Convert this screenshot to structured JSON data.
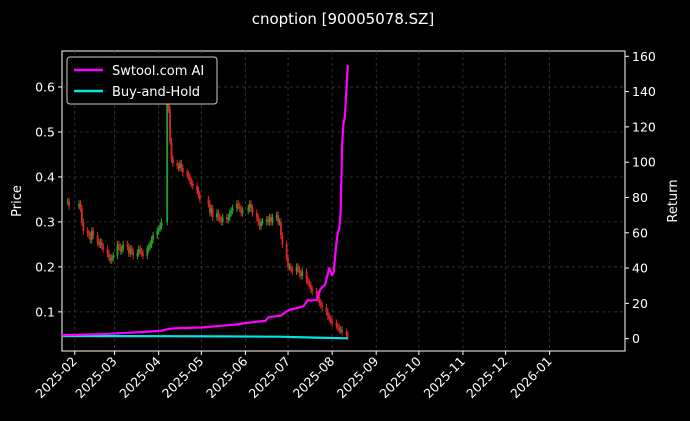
{
  "chart_data": {
    "type": "line",
    "title": "cnoption [90005078.SZ]",
    "ylabel_left": "Price",
    "ylabel_right": "Return",
    "ylim_left": [
      0.013,
      0.68
    ],
    "ylim_right": [
      -7,
      163
    ],
    "yticks_left": [
      "0.1",
      "0.2",
      "0.3",
      "0.4",
      "0.5",
      "0.6"
    ],
    "yticks_right": [
      "0",
      "20",
      "40",
      "60",
      "80",
      "100",
      "120",
      "140",
      "160"
    ],
    "xlim": [
      "2025-01-23",
      "2026-02-23"
    ],
    "xticks": [
      "2025-02",
      "2025-03",
      "2025-04",
      "2025-05",
      "2025-06",
      "2025-07",
      "2025-08",
      "2025-09",
      "2025-10",
      "2025-11",
      "2025-12",
      "2026-01"
    ],
    "grid": true,
    "legend_position": "top-left",
    "colors": {
      "background": "#000000",
      "grid": "#444444",
      "up": "#2ca02c",
      "down": "#d62728",
      "ai": "#ff00ff",
      "bh": "#00e5e5"
    },
    "candlestick_close": [
      [
        "2025-01-27",
        0.345
      ],
      [
        "2025-01-28",
        0.335
      ],
      [
        "2025-02-04",
        0.34
      ],
      [
        "2025-02-05",
        0.33
      ],
      [
        "2025-02-06",
        0.3
      ],
      [
        "2025-02-07",
        0.28
      ],
      [
        "2025-02-10",
        0.275
      ],
      [
        "2025-02-11",
        0.27
      ],
      [
        "2025-02-12",
        0.26
      ],
      [
        "2025-02-13",
        0.28
      ],
      [
        "2025-02-14",
        0.27
      ],
      [
        "2025-02-17",
        0.255
      ],
      [
        "2025-02-18",
        0.25
      ],
      [
        "2025-02-19",
        0.255
      ],
      [
        "2025-02-20",
        0.245
      ],
      [
        "2025-02-21",
        0.24
      ],
      [
        "2025-02-24",
        0.23
      ],
      [
        "2025-02-25",
        0.22
      ],
      [
        "2025-02-26",
        0.215
      ],
      [
        "2025-02-27",
        0.22
      ],
      [
        "2025-02-28",
        0.225
      ],
      [
        "2025-03-03",
        0.25
      ],
      [
        "2025-03-04",
        0.245
      ],
      [
        "2025-03-05",
        0.235
      ],
      [
        "2025-03-06",
        0.24
      ],
      [
        "2025-03-07",
        0.25
      ],
      [
        "2025-03-10",
        0.245
      ],
      [
        "2025-03-11",
        0.23
      ],
      [
        "2025-03-12",
        0.24
      ],
      [
        "2025-03-13",
        0.235
      ],
      [
        "2025-03-14",
        0.225
      ],
      [
        "2025-03-17",
        0.23
      ],
      [
        "2025-03-18",
        0.24
      ],
      [
        "2025-03-19",
        0.235
      ],
      [
        "2025-03-20",
        0.23
      ],
      [
        "2025-03-21",
        0.225
      ],
      [
        "2025-03-24",
        0.24
      ],
      [
        "2025-03-25",
        0.245
      ],
      [
        "2025-03-26",
        0.25
      ],
      [
        "2025-03-27",
        0.26
      ],
      [
        "2025-03-28",
        0.27
      ],
      [
        "2025-03-31",
        0.28
      ],
      [
        "2025-04-01",
        0.285
      ],
      [
        "2025-04-02",
        0.29
      ],
      [
        "2025-04-03",
        0.3
      ],
      [
        "2025-04-07",
        0.6
      ],
      [
        "2025-04-08",
        0.55
      ],
      [
        "2025-04-09",
        0.48
      ],
      [
        "2025-04-10",
        0.44
      ],
      [
        "2025-04-11",
        0.43
      ],
      [
        "2025-04-14",
        0.425
      ],
      [
        "2025-04-15",
        0.42
      ],
      [
        "2025-04-16",
        0.43
      ],
      [
        "2025-04-17",
        0.42
      ],
      [
        "2025-04-18",
        0.41
      ],
      [
        "2025-04-21",
        0.405
      ],
      [
        "2025-04-22",
        0.4
      ],
      [
        "2025-04-23",
        0.39
      ],
      [
        "2025-04-24",
        0.385
      ],
      [
        "2025-04-25",
        0.38
      ],
      [
        "2025-04-28",
        0.37
      ],
      [
        "2025-04-29",
        0.36
      ],
      [
        "2025-04-30",
        0.35
      ],
      [
        "2025-05-06",
        0.34
      ],
      [
        "2025-05-07",
        0.32
      ],
      [
        "2025-05-08",
        0.33
      ],
      [
        "2025-05-09",
        0.31
      ],
      [
        "2025-05-12",
        0.32
      ],
      [
        "2025-05-13",
        0.31
      ],
      [
        "2025-05-14",
        0.305
      ],
      [
        "2025-05-15",
        0.3
      ],
      [
        "2025-05-16",
        0.31
      ],
      [
        "2025-05-19",
        0.305
      ],
      [
        "2025-05-20",
        0.31
      ],
      [
        "2025-05-21",
        0.32
      ],
      [
        "2025-05-22",
        0.325
      ],
      [
        "2025-05-23",
        0.33
      ],
      [
        "2025-05-26",
        0.34
      ],
      [
        "2025-05-27",
        0.335
      ],
      [
        "2025-05-28",
        0.33
      ],
      [
        "2025-05-29",
        0.32
      ],
      [
        "2025-05-30",
        0.325
      ],
      [
        "2025-06-03",
        0.33
      ],
      [
        "2025-06-04",
        0.34
      ],
      [
        "2025-06-05",
        0.33
      ],
      [
        "2025-06-06",
        0.32
      ],
      [
        "2025-06-09",
        0.31
      ],
      [
        "2025-06-10",
        0.3
      ],
      [
        "2025-06-11",
        0.29
      ],
      [
        "2025-06-12",
        0.3
      ],
      [
        "2025-06-13",
        0.3
      ],
      [
        "2025-06-16",
        0.305
      ],
      [
        "2025-06-17",
        0.3
      ],
      [
        "2025-06-18",
        0.31
      ],
      [
        "2025-06-19",
        0.3
      ],
      [
        "2025-06-20",
        0.31
      ],
      [
        "2025-06-23",
        0.315
      ],
      [
        "2025-06-24",
        0.3
      ],
      [
        "2025-06-25",
        0.3
      ],
      [
        "2025-06-26",
        0.27
      ],
      [
        "2025-06-27",
        0.25
      ],
      [
        "2025-06-30",
        0.22
      ],
      [
        "2025-07-01",
        0.2
      ],
      [
        "2025-07-02",
        0.2
      ],
      [
        "2025-07-03",
        0.195
      ],
      [
        "2025-07-04",
        0.19
      ],
      [
        "2025-07-07",
        0.2
      ],
      [
        "2025-07-08",
        0.195
      ],
      [
        "2025-07-09",
        0.185
      ],
      [
        "2025-07-10",
        0.18
      ],
      [
        "2025-07-11",
        0.19
      ],
      [
        "2025-07-14",
        0.17
      ],
      [
        "2025-07-15",
        0.165
      ],
      [
        "2025-07-16",
        0.16
      ],
      [
        "2025-07-17",
        0.15
      ],
      [
        "2025-07-18",
        0.145
      ],
      [
        "2025-07-21",
        0.14
      ],
      [
        "2025-07-22",
        0.13
      ],
      [
        "2025-07-23",
        0.12
      ],
      [
        "2025-07-24",
        0.115
      ],
      [
        "2025-07-25",
        0.11
      ],
      [
        "2025-07-28",
        0.1
      ],
      [
        "2025-07-29",
        0.09
      ],
      [
        "2025-07-30",
        0.085
      ],
      [
        "2025-07-31",
        0.08
      ],
      [
        "2025-08-01",
        0.075
      ],
      [
        "2025-08-04",
        0.07
      ],
      [
        "2025-08-05",
        0.065
      ],
      [
        "2025-08-06",
        0.06
      ],
      [
        "2025-08-07",
        0.06
      ],
      [
        "2025-08-08",
        0.055
      ],
      [
        "2025-08-11",
        0.05
      ],
      [
        "2025-08-12",
        0.045
      ]
    ],
    "series": [
      {
        "name": "Swtool.com AI",
        "color": "#ff00ff",
        "points": [
          [
            "2025-01-23",
            2.0
          ],
          [
            "2025-02-20",
            2.5
          ],
          [
            "2025-03-10",
            3.3
          ],
          [
            "2025-03-25",
            4.0
          ],
          [
            "2025-04-03",
            4.5
          ],
          [
            "2025-04-08",
            5.5
          ],
          [
            "2025-04-15",
            6.0
          ],
          [
            "2025-05-01",
            6.3
          ],
          [
            "2025-05-15",
            7.3
          ],
          [
            "2025-05-25",
            8.0
          ],
          [
            "2025-06-01",
            8.8
          ],
          [
            "2025-06-10",
            9.7
          ],
          [
            "2025-06-15",
            10.0
          ],
          [
            "2025-06-17",
            12.0
          ],
          [
            "2025-06-20",
            12.5
          ],
          [
            "2025-06-26",
            13.0
          ],
          [
            "2025-06-30",
            15.5
          ],
          [
            "2025-07-03",
            16.5
          ],
          [
            "2025-07-08",
            17.5
          ],
          [
            "2025-07-12",
            18.5
          ],
          [
            "2025-07-15",
            22.0
          ],
          [
            "2025-07-17",
            21.5
          ],
          [
            "2025-07-21",
            22.0
          ],
          [
            "2025-07-24",
            28.5
          ],
          [
            "2025-07-27",
            30.5
          ],
          [
            "2025-07-29",
            37.0
          ],
          [
            "2025-07-30",
            40.0
          ],
          [
            "2025-08-01",
            36.0
          ],
          [
            "2025-08-02",
            37.0
          ],
          [
            "2025-08-04",
            54.0
          ],
          [
            "2025-08-05",
            60.0
          ],
          [
            "2025-08-06",
            62.0
          ],
          [
            "2025-08-07",
            72.0
          ],
          [
            "2025-08-08",
            110.0
          ],
          [
            "2025-08-09",
            122.0
          ],
          [
            "2025-08-10",
            126.0
          ],
          [
            "2025-08-12",
            155.0
          ]
        ]
      },
      {
        "name": "Buy-and-Hold",
        "color": "#00e5e5",
        "points": [
          [
            "2025-01-23",
            1.5
          ],
          [
            "2025-04-07",
            1.4
          ],
          [
            "2025-05-15",
            1.3
          ],
          [
            "2025-06-25",
            1.1
          ],
          [
            "2025-07-20",
            0.6
          ],
          [
            "2025-08-12",
            0.2
          ]
        ]
      }
    ]
  }
}
